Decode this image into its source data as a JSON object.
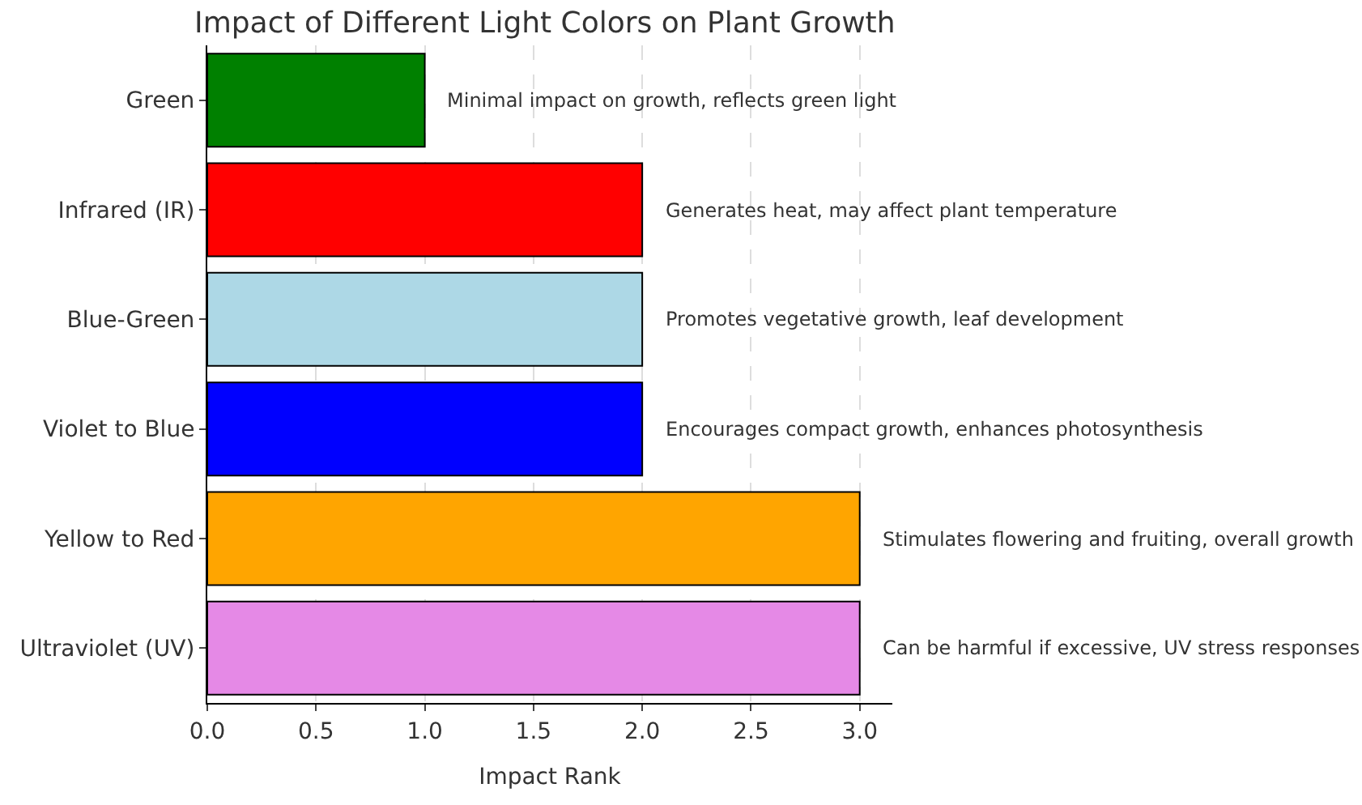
{
  "chart_data": {
    "type": "bar",
    "orientation": "horizontal",
    "title": "Impact of Different Light Colors on Plant Growth",
    "xlabel": "Impact Rank",
    "categories": [
      "Green",
      "Infrared (IR)",
      "Blue-Green",
      "Violet to Blue",
      "Yellow to Red",
      "Ultraviolet (UV)"
    ],
    "values": [
      1,
      2,
      2,
      2,
      3,
      3
    ],
    "colors": [
      "#008000",
      "#ff0000",
      "#add8e6",
      "#0000ff",
      "#ffa500",
      "#e589e6"
    ],
    "xlim": [
      0,
      3.15
    ],
    "xticks": [
      {
        "value": 0,
        "label": "0.0"
      },
      {
        "value": 0.5,
        "label": "0.5"
      },
      {
        "value": 1,
        "label": "1.0"
      },
      {
        "value": 1.5,
        "label": "1.5"
      },
      {
        "value": 2,
        "label": "2.0"
      },
      {
        "value": 2.5,
        "label": "2.5"
      },
      {
        "value": 3,
        "label": "3.0"
      }
    ],
    "grid": "x",
    "annotations": [
      {
        "text": "Minimal impact on growth, reflects green light",
        "x": 1,
        "y": "Green"
      },
      {
        "text": "Generates heat, may affect plant temperature",
        "x": 2,
        "y": "Infrared (IR)"
      },
      {
        "text": "Promotes vegetative growth, leaf development",
        "x": 2,
        "y": "Blue-Green"
      },
      {
        "text": "Encourages compact growth, enhances photosynthesis",
        "x": 2,
        "y": "Violet to Blue"
      },
      {
        "text": "Stimulates flowering and fruiting, overall growth",
        "x": 3,
        "y": "Yellow to Red"
      },
      {
        "text": "Can be harmful if excessive, UV stress responses",
        "x": 3,
        "y": "Ultraviolet (UV)"
      }
    ]
  }
}
